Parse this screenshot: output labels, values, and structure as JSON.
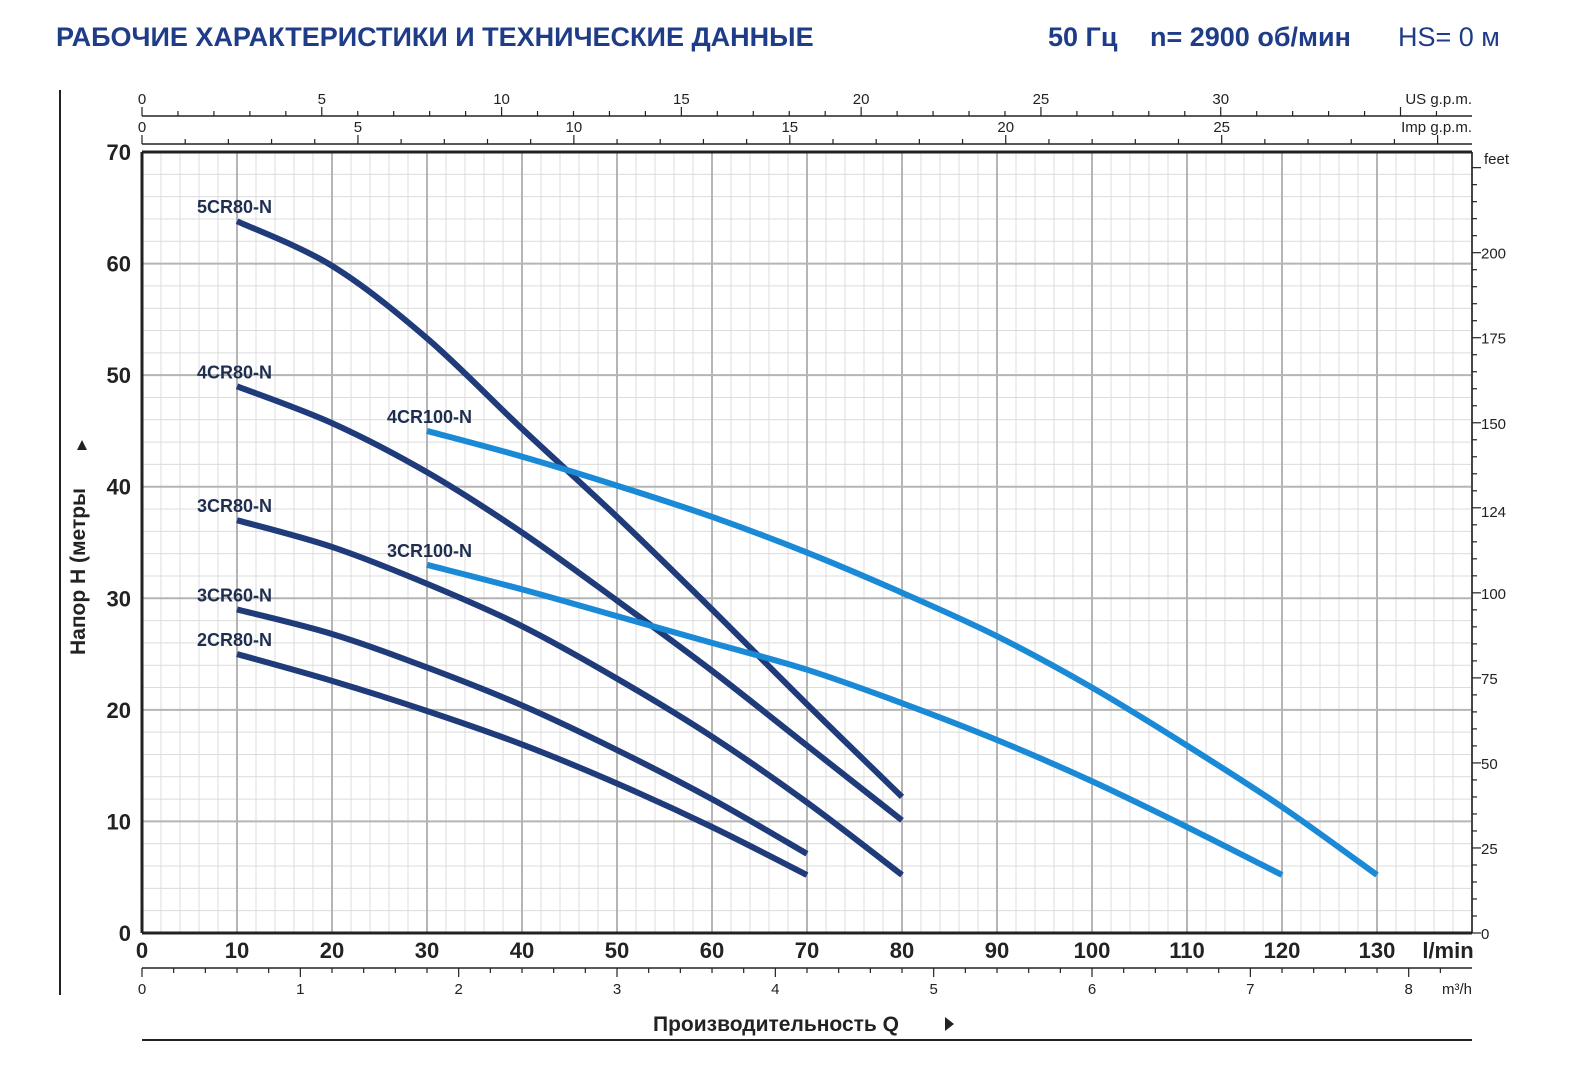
{
  "header": {
    "title": "РАБОЧИЕ ХАРАКТЕРИСТИКИ И ТЕХНИЧЕСКИЕ ДАННЫЕ",
    "frequency": "50 Гц",
    "speed": "n= 2900 об/мин",
    "hs": "HS= 0 м"
  },
  "colors": {
    "title": "#1f3c88",
    "cr80_series": "#1f3b7a",
    "cr100_series": "#1b8ad6",
    "grid_major": "#b5b5b5",
    "grid_minor": "#dcdcdc"
  },
  "chart_data": {
    "type": "line",
    "title": "РАБОЧИЕ ХАРАКТЕРИСТИКИ И ТЕХНИЧЕСКИЕ ДАННЫЕ",
    "xlabel": "Производительность Q",
    "ylabel": "Напор Н (метры",
    "xlim": [
      0,
      140
    ],
    "ylim": [
      0,
      70
    ],
    "x_unit": "l/min",
    "grid": true,
    "x_ticks": [
      "0",
      "10",
      "20",
      "30",
      "40",
      "50",
      "60",
      "70",
      "80",
      "90",
      "100",
      "110",
      "120",
      "130"
    ],
    "y_ticks": [
      "0",
      "10",
      "20",
      "30",
      "40",
      "50",
      "60",
      "70"
    ],
    "secondary_axes": {
      "us_gpm": {
        "label": "US g.p.m.",
        "ticks": [
          "0",
          "5",
          "10",
          "15",
          "20",
          "25",
          "30"
        ]
      },
      "imp_gpm": {
        "label": "Imp g.p.m.",
        "ticks": [
          "0",
          "5",
          "10",
          "15",
          "20",
          "25"
        ]
      },
      "m3h": {
        "label": "m³/h",
        "ticks": [
          "0",
          "1",
          "2",
          "3",
          "4",
          "5",
          "6",
          "7",
          "8"
        ]
      },
      "feet": {
        "label": "feet",
        "ticks": [
          "0",
          "25",
          "50",
          "75",
          "100",
          "124",
          "150",
          "175",
          "200"
        ]
      }
    },
    "series": [
      {
        "name": "5CR80-N",
        "color": "#1f3b7a",
        "x": [
          10,
          20,
          30,
          40,
          50,
          60,
          70,
          80
        ],
        "y": [
          63.8,
          59.8,
          53.3,
          45.2,
          37.3,
          29.0,
          20.5,
          12.2
        ]
      },
      {
        "name": "4CR80-N",
        "color": "#1f3b7a",
        "x": [
          10,
          20,
          30,
          40,
          50,
          60,
          70,
          80
        ],
        "y": [
          49.0,
          45.7,
          41.3,
          35.9,
          29.8,
          23.5,
          16.8,
          10.1
        ]
      },
      {
        "name": "3CR80-N",
        "color": "#1f3b7a",
        "x": [
          10,
          20,
          30,
          40,
          50,
          60,
          70,
          80
        ],
        "y": [
          37.0,
          34.6,
          31.3,
          27.5,
          22.8,
          17.6,
          11.7,
          5.2
        ]
      },
      {
        "name": "3CR60-N",
        "color": "#1f3b7a",
        "x": [
          10,
          20,
          30,
          40,
          50,
          60,
          70
        ],
        "y": [
          29.0,
          26.8,
          23.8,
          20.4,
          16.4,
          12.0,
          7.1
        ]
      },
      {
        "name": "2CR80-N",
        "color": "#1f3b7a",
        "x": [
          10,
          20,
          30,
          40,
          50,
          60,
          70
        ],
        "y": [
          25.0,
          22.6,
          19.9,
          16.9,
          13.4,
          9.5,
          5.2
        ]
      },
      {
        "name": "4CR100-N",
        "color": "#1b8ad6",
        "x": [
          30,
          40,
          50,
          60,
          70,
          80,
          90,
          100,
          110,
          120,
          130
        ],
        "y": [
          45.0,
          42.7,
          40.1,
          37.3,
          34.1,
          30.5,
          26.6,
          22.0,
          16.8,
          11.3,
          5.2
        ]
      },
      {
        "name": "3CR100-N",
        "color": "#1b8ad6",
        "x": [
          30,
          40,
          50,
          60,
          70,
          80,
          90,
          100,
          110,
          120
        ],
        "y": [
          33.0,
          30.8,
          28.4,
          26.0,
          23.6,
          20.6,
          17.3,
          13.6,
          9.5,
          5.2
        ]
      }
    ]
  }
}
